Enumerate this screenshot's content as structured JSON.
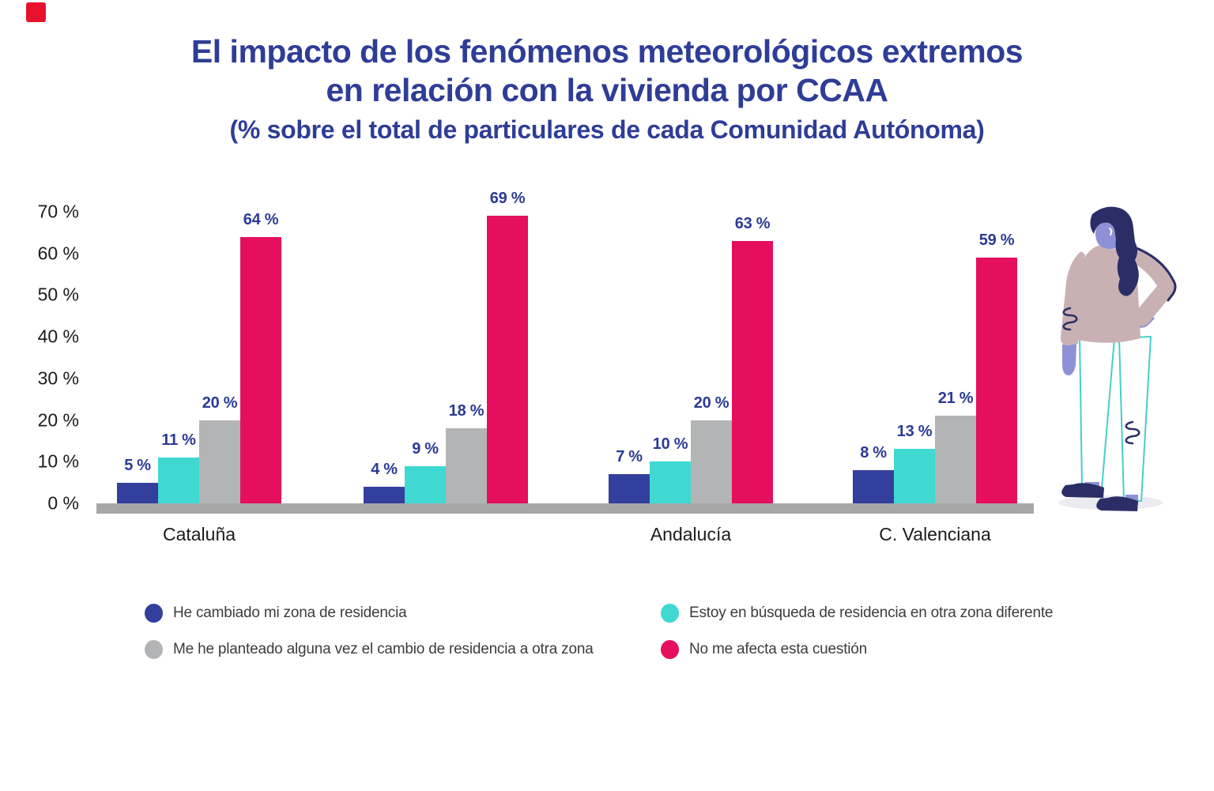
{
  "colors": {
    "title_blue": "#2e3d96",
    "value_blue": "#2b3a96",
    "text_dark": "#1b1b1b",
    "legend_text": "#3c3c3c",
    "axis_line": "#a7a7a7",
    "corner_mark": "#e8112d"
  },
  "chart_data": {
    "type": "bar",
    "title_line1": "El impacto de los fenómenos meteorológicos extremos",
    "title_line2": "en relación con la vivienda por CCAA",
    "subtitle": "(% sobre el total de particulares de cada Comunidad Autónoma)",
    "categories": [
      "Cataluña",
      "",
      "Andalucía",
      "C. Valenciana"
    ],
    "series": [
      {
        "name": "He cambiado mi zona de residencia",
        "color": "#333f9c",
        "values": [
          5,
          4,
          7,
          8
        ]
      },
      {
        "name": "Estoy en búsqueda de residencia en otra zona diferente",
        "color": "#3fd9d1",
        "values": [
          11,
          9,
          10,
          13
        ]
      },
      {
        "name": "Me he planteado alguna vez el cambio de residencia a otra zona",
        "color": "#b3b4b6",
        "values": [
          20,
          18,
          20,
          21
        ]
      },
      {
        "name": "No me afecta esta cuestión",
        "color": "#e50f5e",
        "values": [
          64,
          69,
          63,
          59
        ]
      }
    ],
    "y_ticks": [
      "70 %",
      "60 %",
      "50 %",
      "40 %",
      "30 %",
      "20 %",
      "10 %",
      "0 %"
    ],
    "ylim": [
      0,
      70
    ],
    "grid": false,
    "legend_position": "bottom",
    "value_label_format": "{v} %"
  },
  "figure": {
    "description": "flat illustration of standing woman, hand on hip",
    "colors": {
      "hair": "#2b2e66",
      "skin": "#8d92d6",
      "sweater": "#c9b1b3",
      "pants": "#45cfc9",
      "shadow": "#ebebf0"
    }
  }
}
